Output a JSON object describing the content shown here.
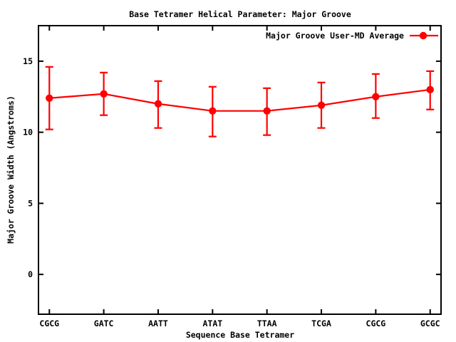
{
  "window": {
    "background": "#ffffff"
  },
  "chart_data": {
    "type": "line",
    "style": "linespoints-with-yerrorbars",
    "title": "Base Tetramer Helical Parameter: Major Groove",
    "xlabel": "Sequence Base Tetramer",
    "ylabel": "Major Groove Width (Angstroms)",
    "categories": [
      "CGCG",
      "GATC",
      "AATT",
      "ATAT",
      "TTAA",
      "TCGA",
      "CGCG",
      "GCGC"
    ],
    "series": [
      {
        "name": "Major Groove User-MD Average",
        "color": "#ff0000",
        "marker": "filled-circle",
        "values": [
          12.4,
          12.7,
          12.0,
          11.5,
          11.5,
          11.9,
          12.5,
          13.0
        ],
        "err_low": [
          10.2,
          11.2,
          10.3,
          9.7,
          9.8,
          10.3,
          11.0,
          11.6
        ],
        "err_high": [
          14.6,
          14.2,
          13.6,
          13.2,
          13.1,
          13.5,
          14.1,
          14.3
        ]
      }
    ],
    "legend": {
      "label": "Major Groove User-MD Average",
      "position": "top-right-inside"
    },
    "yticks": [
      0,
      5,
      10,
      15
    ],
    "ylim": [
      -2.8,
      17.5
    ],
    "xlim": [
      0.8,
      8.2
    ],
    "grid": false,
    "ticks_mirrored": true,
    "axis_color": "#000000",
    "text_color": "#000000",
    "background": "#ffffff"
  }
}
